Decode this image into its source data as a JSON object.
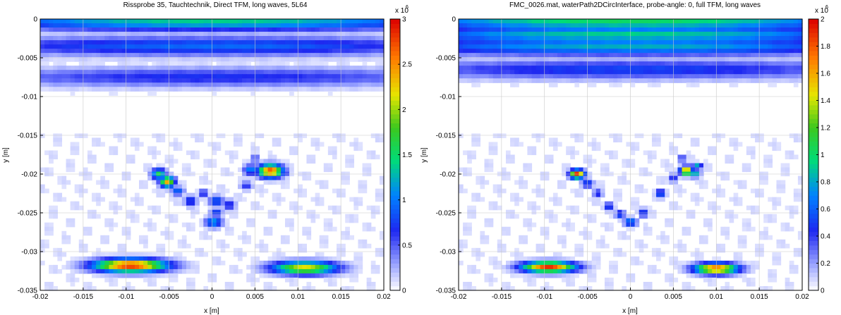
{
  "chart_data": [
    {
      "type": "heatmap",
      "title": "Rissprobe 35, Tauchtechnik, Direct TFM, long waves, 5L64",
      "xlabel": "x [m]",
      "ylabel": "y [m]",
      "xlim": [
        -0.02,
        0.02
      ],
      "ylim": [
        -0.035,
        0
      ],
      "xticks": [
        "-0.02",
        "-0.015",
        "-0.01",
        "-0.005",
        "0",
        "0.005",
        "0.01",
        "0.015",
        "0.02"
      ],
      "yticks": [
        "0",
        "-0.005",
        "-0.01",
        "-0.015",
        "-0.02",
        "-0.025",
        "-0.03",
        "-0.035"
      ],
      "grid": true,
      "colorbar": {
        "min": 0,
        "max": 3,
        "ticks": [
          "0",
          "0.5",
          "1",
          "1.5",
          "2",
          "2.5",
          "3"
        ],
        "multiplier": "x 10",
        "exponent": "6"
      },
      "background_bands": [
        {
          "y": -0.0003,
          "intensity": 0.45
        },
        {
          "y": -0.0035,
          "intensity": 0.3
        },
        {
          "y": -0.0075,
          "intensity": 0.22
        }
      ],
      "blobs": [
        {
          "x": -0.0095,
          "y": -0.0318,
          "sx": 0.003,
          "sy": 0.0006,
          "value": 2.9
        },
        {
          "x": 0.0108,
          "y": -0.0321,
          "sx": 0.0027,
          "sy": 0.0006,
          "value": 2.2
        },
        {
          "x": -0.0062,
          "y": -0.02,
          "sx": 0.0006,
          "sy": 0.0005,
          "value": 1.6
        },
        {
          "x": -0.0052,
          "y": -0.021,
          "sx": 0.0006,
          "sy": 0.0005,
          "value": 2.4
        },
        {
          "x": -0.004,
          "y": -0.0222,
          "sx": 0.0005,
          "sy": 0.0004,
          "value": 1.0
        },
        {
          "x": -0.0025,
          "y": -0.0235,
          "sx": 0.0005,
          "sy": 0.0005,
          "value": 0.9
        },
        {
          "x": -0.001,
          "y": -0.0225,
          "sx": 0.0004,
          "sy": 0.0004,
          "value": 0.8
        },
        {
          "x": 0.0005,
          "y": -0.0235,
          "sx": 0.0006,
          "sy": 0.0005,
          "value": 1.0
        },
        {
          "x": 0.0005,
          "y": -0.025,
          "sx": 0.0005,
          "sy": 0.0004,
          "value": 0.9
        },
        {
          "x": 0.0002,
          "y": -0.0262,
          "sx": 0.0007,
          "sy": 0.0005,
          "value": 1.2
        },
        {
          "x": 0.002,
          "y": -0.024,
          "sx": 0.0005,
          "sy": 0.0005,
          "value": 0.8
        },
        {
          "x": 0.004,
          "y": -0.0215,
          "sx": 0.0005,
          "sy": 0.0004,
          "value": 0.7
        },
        {
          "x": 0.0045,
          "y": -0.0195,
          "sx": 0.0006,
          "sy": 0.0005,
          "value": 1.1
        },
        {
          "x": 0.005,
          "y": -0.018,
          "sx": 0.0004,
          "sy": 0.0004,
          "value": 0.6
        },
        {
          "x": 0.0068,
          "y": -0.0196,
          "sx": 0.001,
          "sy": 0.0006,
          "value": 2.8
        },
        {
          "x": 0.0085,
          "y": -0.0198,
          "sx": 0.0004,
          "sy": 0.0004,
          "value": 0.7
        }
      ]
    },
    {
      "type": "heatmap",
      "title": "FMC_0026.mat, waterPath2DCircInterface,  probe-angle: 0, full TFM, long waves",
      "xlabel": "x [m]",
      "ylabel": "y [m]",
      "xlim": [
        -0.02,
        0.02
      ],
      "ylim": [
        -0.035,
        0
      ],
      "xticks": [
        "-0.02",
        "-0.015",
        "-0.01",
        "-0.005",
        "0",
        "0.005",
        "0.01",
        "0.015",
        "0.02"
      ],
      "yticks": [
        "0",
        "-0.005",
        "-0.01",
        "-0.015",
        "-0.02",
        "-0.025",
        "-0.03",
        "-0.035"
      ],
      "grid": true,
      "colorbar": {
        "min": 0,
        "max": 2,
        "ticks": [
          "0",
          "0.2",
          "0.4",
          "0.6",
          "0.8",
          "1",
          "1.2",
          "1.4",
          "1.6",
          "1.8",
          "2"
        ],
        "multiplier": "x 10",
        "exponent": "6"
      },
      "background_bands": [
        {
          "y": -0.0003,
          "intensity": 0.5
        },
        {
          "y": -0.002,
          "intensity": 0.45
        },
        {
          "y": -0.0035,
          "intensity": 0.4
        },
        {
          "y": -0.0065,
          "intensity": 0.25
        }
      ],
      "blobs": [
        {
          "x": -0.0095,
          "y": -0.032,
          "sx": 0.0022,
          "sy": 0.0005,
          "value": 1.9
        },
        {
          "x": 0.01,
          "y": -0.0322,
          "sx": 0.0018,
          "sy": 0.0005,
          "value": 1.8
        },
        {
          "x": -0.0062,
          "y": -0.02,
          "sx": 0.0006,
          "sy": 0.0004,
          "value": 1.9
        },
        {
          "x": -0.005,
          "y": -0.0212,
          "sx": 0.0005,
          "sy": 0.0004,
          "value": 0.6
        },
        {
          "x": -0.0038,
          "y": -0.0225,
          "sx": 0.0004,
          "sy": 0.0004,
          "value": 0.5
        },
        {
          "x": -0.0025,
          "y": -0.0242,
          "sx": 0.0004,
          "sy": 0.0004,
          "value": 0.6
        },
        {
          "x": -0.0012,
          "y": -0.0252,
          "sx": 0.0004,
          "sy": 0.0004,
          "value": 0.6
        },
        {
          "x": 0.0,
          "y": -0.0262,
          "sx": 0.0005,
          "sy": 0.0004,
          "value": 0.8
        },
        {
          "x": 0.0015,
          "y": -0.025,
          "sx": 0.0004,
          "sy": 0.0004,
          "value": 0.6
        },
        {
          "x": 0.0035,
          "y": -0.0225,
          "sx": 0.0004,
          "sy": 0.0004,
          "value": 0.7
        },
        {
          "x": 0.005,
          "y": -0.0205,
          "sx": 0.0004,
          "sy": 0.0004,
          "value": 0.5
        },
        {
          "x": 0.0065,
          "y": -0.0196,
          "sx": 0.0005,
          "sy": 0.0004,
          "value": 1.8
        },
        {
          "x": 0.0078,
          "y": -0.019,
          "sx": 0.0004,
          "sy": 0.0003,
          "value": 0.9
        },
        {
          "x": 0.0075,
          "y": -0.02,
          "sx": 0.0004,
          "sy": 0.0003,
          "value": 1.0
        },
        {
          "x": 0.006,
          "y": -0.018,
          "sx": 0.0003,
          "sy": 0.0003,
          "value": 0.6
        }
      ]
    }
  ]
}
